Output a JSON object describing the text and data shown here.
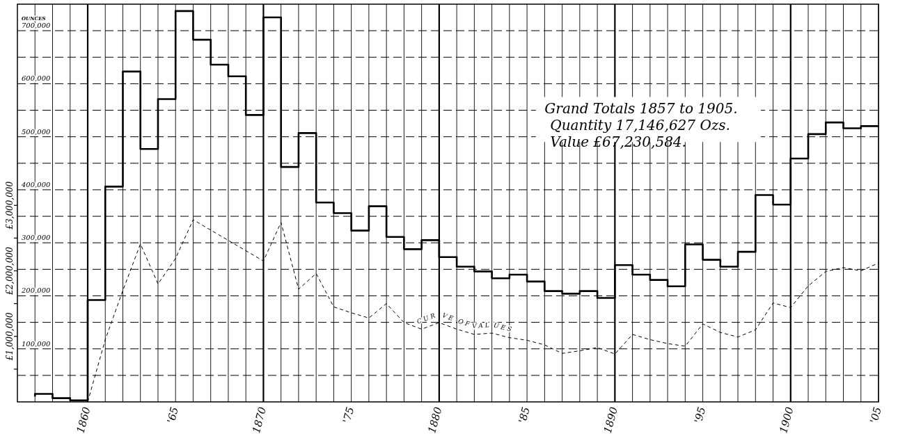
{
  "chart_data": {
    "type": "step",
    "ylabel": "OUNCES",
    "x": [
      1857,
      1858,
      1859,
      1860,
      1861,
      1862,
      1863,
      1864,
      1865,
      1866,
      1867,
      1868,
      1869,
      1870,
      1871,
      1872,
      1873,
      1874,
      1875,
      1876,
      1877,
      1878,
      1879,
      1880,
      1881,
      1882,
      1883,
      1884,
      1885,
      1886,
      1887,
      1888,
      1889,
      1890,
      1891,
      1892,
      1893,
      1894,
      1895,
      1896,
      1897,
      1898,
      1899,
      1900,
      1901,
      1902,
      1903,
      1904,
      1905
    ],
    "series": [
      {
        "color": "#000000",
        "values": [
          10000,
          15000,
          7000,
          3000,
          192000,
          406000,
          623000,
          477000,
          571000,
          737000,
          683000,
          636000,
          614000,
          541000,
          725000,
          443000,
          507000,
          376000,
          356000,
          323000,
          369000,
          311000,
          288000,
          305000,
          273000,
          255000,
          246000,
          233000,
          240000,
          227000,
          209000,
          204000,
          209000,
          196000,
          258000,
          240000,
          230000,
          218000,
          297000,
          268000,
          255000,
          283000,
          390000,
          372000,
          459000,
          505000,
          527000,
          516000,
          520000
        ]
      },
      {
        "type": "line",
        "name": "CURVE OF VALUES",
        "axis": "y2",
        "line_style": "dashed",
        "color": "#000000",
        "x": [
          1860,
          1861,
          1862,
          1863,
          1864,
          1865,
          1866,
          1870,
          1871,
          1872,
          1873,
          1874,
          1875,
          1876,
          1877,
          1878,
          1879,
          1880,
          1881,
          1882,
          1883,
          1884,
          1885,
          1886,
          1887,
          1888,
          1889,
          1890,
          1891,
          1892,
          1893,
          1894,
          1895,
          1896,
          1897,
          1898,
          1899,
          1900,
          1901,
          1902,
          1903,
          1904,
          1905
        ],
        "values": [
          0,
          950000,
          1700000,
          2410000,
          1800000,
          2190000,
          2780000,
          2150000,
          2740000,
          1720000,
          1960000,
          1450000,
          1360000,
          1280000,
          1500000,
          1210000,
          1110000,
          1210000,
          1110000,
          1030000,
          1050000,
          980000,
          940000,
          870000,
          740000,
          780000,
          830000,
          730000,
          1030000,
          950000,
          890000,
          850000,
          1190000,
          1060000,
          990000,
          1100000,
          1510000,
          1440000,
          1770000,
          1990000,
          2050000,
          2000000,
          2120000
        ]
      }
    ],
    "xlim": [
      1856,
      1905
    ],
    "xticks": [
      {
        "value": 1857,
        "label": null
      },
      {
        "value": 1858,
        "label": null
      },
      {
        "value": 1859,
        "label": null
      },
      1860,
      {
        "value": 1861,
        "label": null
      },
      {
        "value": 1862,
        "label": null
      },
      {
        "value": 1863,
        "label": null
      },
      {
        "value": 1864,
        "label": null
      },
      {
        "value": 1865,
        "label": "'65"
      },
      {
        "value": 1866,
        "label": null
      },
      {
        "value": 1867,
        "label": null
      },
      {
        "value": 1868,
        "label": null
      },
      {
        "value": 1869,
        "label": null
      },
      1870,
      {
        "value": 1871,
        "label": null
      },
      {
        "value": 1872,
        "label": null
      },
      {
        "value": 1873,
        "label": null
      },
      {
        "value": 1874,
        "label": null
      },
      {
        "value": 1875,
        "label": "'75"
      },
      {
        "value": 1876,
        "label": null
      },
      {
        "value": 1877,
        "label": null
      },
      {
        "value": 1878,
        "label": null
      },
      {
        "value": 1879,
        "label": null
      },
      1880,
      {
        "value": 1881,
        "label": null
      },
      {
        "value": 1882,
        "label": null
      },
      {
        "value": 1883,
        "label": null
      },
      {
        "value": 1884,
        "label": null
      },
      {
        "value": 1885,
        "label": "'85"
      },
      {
        "value": 1886,
        "label": null
      },
      {
        "value": 1887,
        "label": null
      },
      {
        "value": 1888,
        "label": null
      },
      {
        "value": 1889,
        "label": null
      },
      1890,
      {
        "value": 1891,
        "label": null
      },
      {
        "value": 1892,
        "label": null
      },
      {
        "value": 1893,
        "label": null
      },
      {
        "value": 1894,
        "label": null
      },
      {
        "value": 1895,
        "label": "'95"
      },
      {
        "value": 1896,
        "label": null
      },
      {
        "value": 1897,
        "label": null
      },
      {
        "value": 1898,
        "label": null
      },
      {
        "value": 1899,
        "label": null
      },
      1900,
      {
        "value": 1901,
        "label": null
      },
      {
        "value": 1902,
        "label": null
      },
      {
        "value": 1903,
        "label": null
      },
      {
        "value": 1904,
        "label": null
      },
      {
        "value": 1905,
        "label": "'05"
      }
    ],
    "ylim": [
      0,
      750000
    ],
    "yticks": [
      {
        "value": 50000,
        "label": null
      },
      {
        "value": 100000,
        "label": "100,000"
      },
      {
        "value": 150000,
        "label": null
      },
      {
        "value": 200000,
        "label": "200,000"
      },
      {
        "value": 250000,
        "label": null
      },
      {
        "value": 300000,
        "label": "300,000"
      },
      {
        "value": 350000,
        "label": null
      },
      {
        "value": 400000,
        "label": "400,000"
      },
      {
        "value": 450000,
        "label": null
      },
      {
        "value": 500000,
        "label": "500,000"
      },
      {
        "value": 550000,
        "label": null
      },
      {
        "value": 600000,
        "label": "600,000"
      },
      {
        "value": 650000,
        "label": null
      },
      {
        "value": 700000,
        "label": "700,000"
      }
    ],
    "y2lim": [
      0,
      6070000
    ],
    "y2ticks": [
      {
        "value": 500000,
        "label": null
      },
      {
        "value": 1000000,
        "label": "£1,000,000"
      },
      {
        "value": 1500000,
        "label": null
      },
      {
        "value": 2000000,
        "label": "£2,000,000"
      },
      {
        "value": 2500000,
        "label": null
      },
      {
        "value": 3000000,
        "label": "£3,000,000"
      }
    ],
    "grid": true,
    "annotations": [
      "Grand Totals 1857 to 1905.",
      "Quantity 17,146,627 Ozs.",
      "Value £67,230,584."
    ]
  }
}
